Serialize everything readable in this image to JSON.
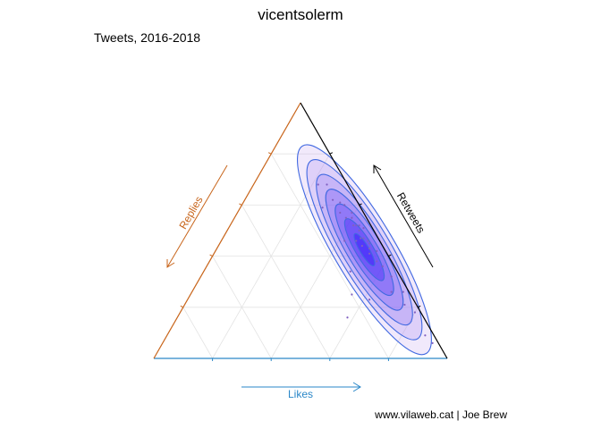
{
  "chart_data": {
    "type": "scatter",
    "subtype": "ternary-density",
    "title": "vicentsolerm",
    "subtitle": "Tweets, 2016-2018",
    "caption": "www.vilaweb.cat | Joe Brew",
    "axes": {
      "likes": {
        "label": "Likes",
        "color": "#2a87c8"
      },
      "replies": {
        "label": "Replies",
        "color": "#c8651b"
      },
      "retweets": {
        "label": "Retweets",
        "color": "#000000"
      }
    },
    "grid": true,
    "ticks_per_axis": 5,
    "density_colors": {
      "contour_line": "#4169e1",
      "fill_low": "#c8a8f0",
      "fill_high": "#1a00ff",
      "point": "#8060c0"
    },
    "density_levels": 7,
    "points": [
      {
        "likes": 0.45,
        "replies": 0.05,
        "retweets": 0.5
      },
      {
        "likes": 0.5,
        "replies": 0.04,
        "retweets": 0.46
      },
      {
        "likes": 0.42,
        "replies": 0.06,
        "retweets": 0.52
      },
      {
        "likes": 0.55,
        "replies": 0.03,
        "retweets": 0.42
      },
      {
        "likes": 0.38,
        "replies": 0.07,
        "retweets": 0.55
      },
      {
        "likes": 0.48,
        "replies": 0.05,
        "retweets": 0.47
      },
      {
        "likes": 0.44,
        "replies": 0.04,
        "retweets": 0.52
      },
      {
        "likes": 0.52,
        "replies": 0.05,
        "retweets": 0.43
      },
      {
        "likes": 0.47,
        "replies": 0.06,
        "retweets": 0.47
      },
      {
        "likes": 0.4,
        "replies": 0.05,
        "retweets": 0.55
      },
      {
        "likes": 0.46,
        "replies": 0.03,
        "retweets": 0.51
      },
      {
        "likes": 0.49,
        "replies": 0.07,
        "retweets": 0.44
      },
      {
        "likes": 0.43,
        "replies": 0.05,
        "retweets": 0.52
      },
      {
        "likes": 0.51,
        "replies": 0.04,
        "retweets": 0.45
      },
      {
        "likes": 0.35,
        "replies": 0.08,
        "retweets": 0.57
      },
      {
        "likes": 0.3,
        "replies": 0.08,
        "retweets": 0.62
      },
      {
        "likes": 0.25,
        "replies": 0.07,
        "retweets": 0.68
      },
      {
        "likes": 0.22,
        "replies": 0.1,
        "retweets": 0.68
      },
      {
        "likes": 0.6,
        "replies": 0.04,
        "retweets": 0.36
      },
      {
        "likes": 0.65,
        "replies": 0.03,
        "retweets": 0.32
      },
      {
        "likes": 0.72,
        "replies": 0.02,
        "retweets": 0.26
      },
      {
        "likes": 0.8,
        "replies": 0.02,
        "retweets": 0.18
      },
      {
        "likes": 0.88,
        "replies": 0.03,
        "retweets": 0.09
      },
      {
        "likes": 0.92,
        "replies": 0.02,
        "retweets": 0.06
      },
      {
        "likes": 0.28,
        "replies": 0.13,
        "retweets": 0.59
      },
      {
        "likes": 0.42,
        "replies": 0.12,
        "retweets": 0.46
      },
      {
        "likes": 0.5,
        "replies": 0.16,
        "retweets": 0.34
      },
      {
        "likes": 0.55,
        "replies": 0.2,
        "retweets": 0.25
      },
      {
        "likes": 0.58,
        "replies": 0.26,
        "retweets": 0.16
      },
      {
        "likes": 0.62,
        "replies": 0.15,
        "retweets": 0.23
      },
      {
        "likes": 0.35,
        "replies": 0.05,
        "retweets": 0.6
      },
      {
        "likes": 0.53,
        "replies": 0.06,
        "retweets": 0.41
      },
      {
        "likes": 0.57,
        "replies": 0.05,
        "retweets": 0.38
      },
      {
        "likes": 0.33,
        "replies": 0.06,
        "retweets": 0.61
      },
      {
        "likes": 0.46,
        "replies": 0.08,
        "retweets": 0.46
      },
      {
        "likes": 0.39,
        "replies": 0.04,
        "retweets": 0.57
      },
      {
        "likes": 0.68,
        "replies": 0.06,
        "retweets": 0.26
      },
      {
        "likes": 0.75,
        "replies": 0.04,
        "retweets": 0.21
      }
    ]
  }
}
